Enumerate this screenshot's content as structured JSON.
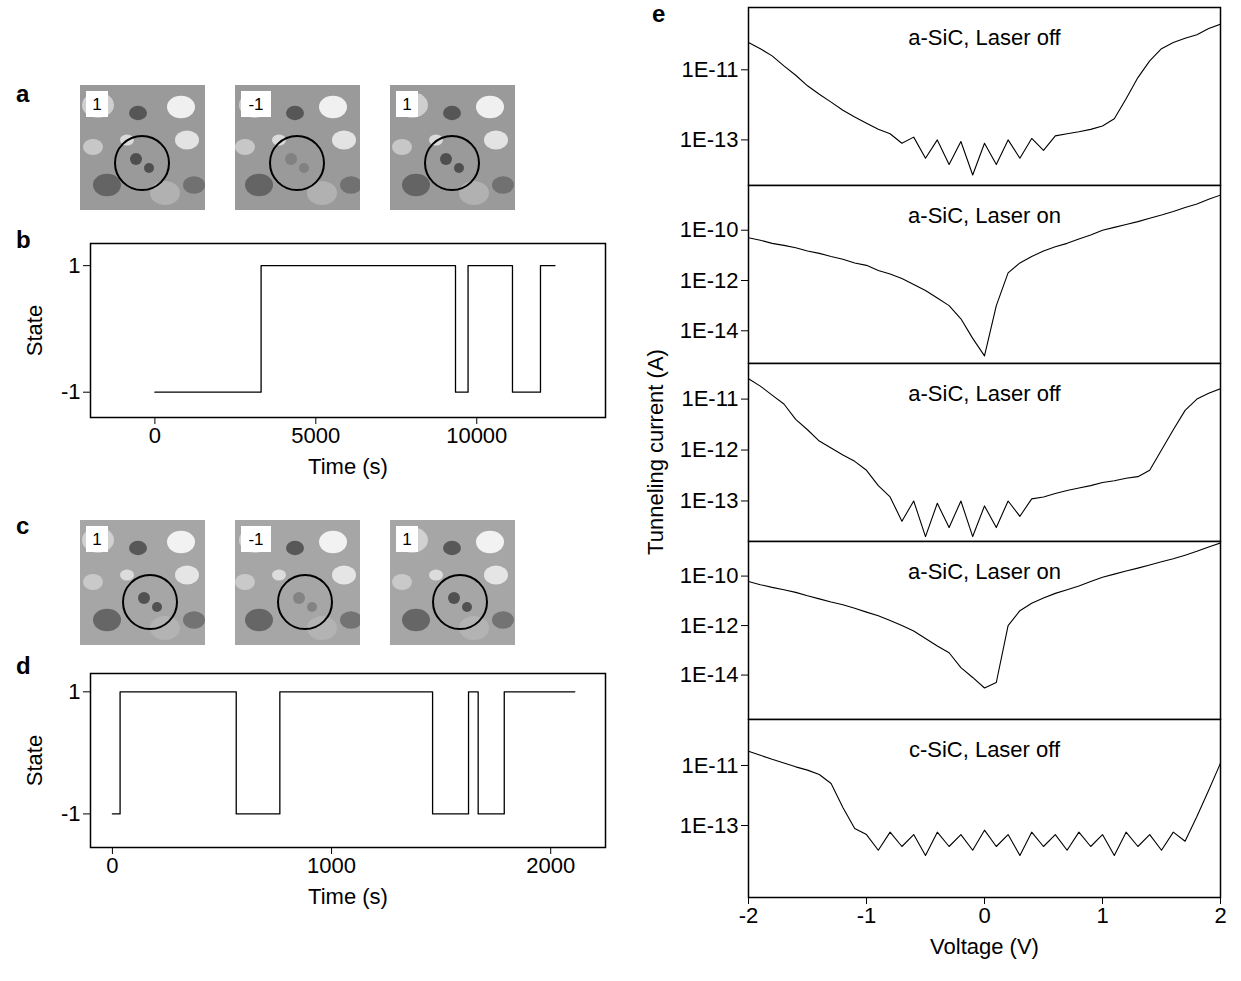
{
  "chart_data": [
    {
      "label": "a",
      "type": "image",
      "frames": [
        "1",
        "-1",
        "1"
      ]
    },
    {
      "label": "b",
      "type": "line",
      "line_style": "step",
      "color": "#000000",
      "xlabel": "Time (s)",
      "ylabel": "State",
      "x": [
        0,
        3300,
        9340,
        9730,
        11110,
        11980,
        12430
      ],
      "values": [
        -1,
        1,
        -1,
        1,
        -1,
        1,
        1
      ],
      "xlim": [
        -2000,
        14000
      ],
      "xticks": [
        0,
        5000,
        10000
      ],
      "ylim": [
        -1.4,
        1.35
      ],
      "yticks": [
        -1,
        1
      ]
    },
    {
      "label": "c",
      "type": "image",
      "frames": [
        "1",
        "-1",
        "1"
      ]
    },
    {
      "label": "d",
      "type": "line",
      "line_style": "step",
      "color": "#000000",
      "xlabel": "Time (s)",
      "ylabel": "State",
      "x": [
        0,
        35,
        565,
        764,
        1461,
        1625,
        1669,
        1788,
        2110
      ],
      "values": [
        -1,
        1,
        -1,
        1,
        -1,
        1,
        -1,
        1,
        1
      ],
      "xlim": [
        -100,
        2250
      ],
      "xticks": [
        0,
        1000,
        2000
      ],
      "ylim": [
        -1.55,
        1.3
      ],
      "yticks": [
        -1,
        1
      ]
    },
    {
      "label": "e",
      "type": "line",
      "log": "y",
      "color": "#000000",
      "xlabel": "Voltage (V)",
      "ylabel": "Tunneling current (A)",
      "xlim": [
        -2,
        2
      ],
      "xticks": [
        -2,
        -1,
        0,
        1,
        2
      ],
      "x": [
        -2,
        -1.9,
        -1.8,
        -1.7,
        -1.6,
        -1.5,
        -1.4,
        -1.3,
        -1.2,
        -1.1,
        -1,
        -0.9,
        -0.8,
        -0.7,
        -0.6,
        -0.5,
        -0.4,
        -0.3,
        -0.2,
        -0.1,
        0,
        0.1,
        0.2,
        0.3,
        0.4,
        0.5,
        0.6,
        0.7,
        0.8,
        0.9,
        1,
        1.1,
        1.2,
        1.3,
        1.4,
        1.5,
        1.6,
        1.7,
        1.8,
        1.9,
        2
      ],
      "panels": [
        {
          "title": "a-SiC, Laser off",
          "ylim": [
            5e-15,
            6e-10
          ],
          "yticks": [
            {
              "value": 1e-11,
              "label": "1E-11"
            },
            {
              "value": 1e-13,
              "label": "1E-13"
            }
          ],
          "values": [
            6e-11,
            4e-11,
            2.5e-11,
            1.3e-11,
            7e-12,
            3.5e-12,
            2e-12,
            1.2e-12,
            7e-13,
            4.5e-13,
            3e-13,
            2e-13,
            1.5e-13,
            8e-14,
            1.2e-13,
            3e-14,
            1e-13,
            2e-14,
            9e-14,
            1e-14,
            8e-14,
            2e-14,
            1e-13,
            3e-14,
            1.1e-13,
            5e-14,
            1.3e-13,
            1.5e-13,
            1.7e-13,
            2e-13,
            2.5e-13,
            4e-13,
            1.5e-12,
            6e-12,
            1.8e-11,
            4e-11,
            6e-11,
            8e-11,
            1e-10,
            1.5e-10,
            2e-10
          ]
        },
        {
          "title": "a-SiC, Laser on",
          "ylim": [
            5e-16,
            6e-09
          ],
          "yticks": [
            {
              "value": 1e-10,
              "label": "1E-10"
            },
            {
              "value": 1e-12,
              "label": "1E-12"
            },
            {
              "value": 1e-14,
              "label": "1E-14"
            }
          ],
          "values": [
            5e-11,
            4e-11,
            3e-11,
            2.5e-11,
            2e-11,
            1.5e-11,
            1.2e-11,
            9e-12,
            7e-12,
            5e-12,
            4e-12,
            2.5e-12,
            1.8e-12,
            1.2e-12,
            7e-13,
            4e-13,
            2e-13,
            1e-13,
            3e-14,
            5e-15,
            1e-15,
            1e-13,
            2e-12,
            5e-12,
            9e-12,
            1.5e-11,
            2.2e-11,
            3e-11,
            4.5e-11,
            6.5e-11,
            1e-10,
            1.3e-10,
            1.7e-10,
            2.2e-10,
            3e-10,
            4e-10,
            5.5e-10,
            8e-10,
            1.1e-09,
            1.7e-09,
            2.5e-09
          ]
        },
        {
          "title": "a-SiC, Laser off",
          "ylim": [
            1.6e-14,
            5e-11
          ],
          "yticks": [
            {
              "value": 1e-11,
              "label": "1E-11"
            },
            {
              "value": 1e-12,
              "label": "1E-12"
            },
            {
              "value": 1e-13,
              "label": "1E-13"
            }
          ],
          "values": [
            2.5e-11,
            1.8e-11,
            1.2e-11,
            8e-12,
            4e-12,
            2.5e-12,
            1.5e-12,
            1.1e-12,
            8e-13,
            6e-13,
            4e-13,
            2e-13,
            1.2e-13,
            4e-14,
            1e-13,
            2e-14,
            9e-14,
            3e-14,
            1e-13,
            2e-14,
            8e-14,
            3e-14,
            1e-13,
            5e-14,
            1.1e-13,
            1.2e-13,
            1.4e-13,
            1.6e-13,
            1.8e-13,
            2e-13,
            2.3e-13,
            2.5e-13,
            2.8e-13,
            3e-13,
            4e-13,
            1e-12,
            2.5e-12,
            6e-12,
            1e-11,
            1.3e-11,
            1.6e-11
          ]
        },
        {
          "title": "a-SiC, Laser on",
          "ylim": [
            1.6e-16,
            2.5e-09
          ],
          "yticks": [
            {
              "value": 1e-10,
              "label": "1E-10"
            },
            {
              "value": 1e-12,
              "label": "1E-12"
            },
            {
              "value": 1e-14,
              "label": "1E-14"
            }
          ],
          "values": [
            6e-11,
            4.5e-11,
            3.5e-11,
            2.8e-11,
            2.2e-11,
            1.6e-11,
            1.2e-11,
            9e-12,
            7e-12,
            5e-12,
            3.5e-12,
            2.5e-12,
            1.6e-12,
            1e-12,
            6e-13,
            3e-13,
            1.5e-13,
            8e-14,
            2e-14,
            8e-15,
            3e-15,
            5e-15,
            1e-12,
            4e-12,
            8e-12,
            1.3e-11,
            2e-11,
            2.8e-11,
            4e-11,
            6e-11,
            9e-11,
            1.2e-10,
            1.6e-10,
            2.1e-10,
            2.8e-10,
            3.8e-10,
            5e-10,
            7e-10,
            1e-09,
            1.5e-09,
            2.2e-09
          ]
        },
        {
          "title": "c-SiC, Laser off",
          "ylim": [
            4e-16,
            3.4e-10
          ],
          "yticks": [
            {
              "value": 1e-11,
              "label": "1E-11"
            },
            {
              "value": 1e-13,
              "label": "1E-13"
            }
          ],
          "values": [
            3e-11,
            2.2e-11,
            1.6e-11,
            1.2e-11,
            9e-12,
            7e-12,
            5e-12,
            2.5e-12,
            4e-13,
            8e-14,
            5e-14,
            1.5e-14,
            6e-14,
            2e-14,
            5e-14,
            1e-14,
            6e-14,
            2e-14,
            5e-14,
            1.5e-14,
            7e-14,
            2e-14,
            5e-14,
            1e-14,
            6e-14,
            2e-14,
            5e-14,
            1.5e-14,
            6e-14,
            2e-14,
            5e-14,
            1e-14,
            6e-14,
            2e-14,
            5e-14,
            1.5e-14,
            6e-14,
            3e-14,
            2e-13,
            1.5e-12,
            1.2e-11
          ]
        }
      ]
    }
  ]
}
